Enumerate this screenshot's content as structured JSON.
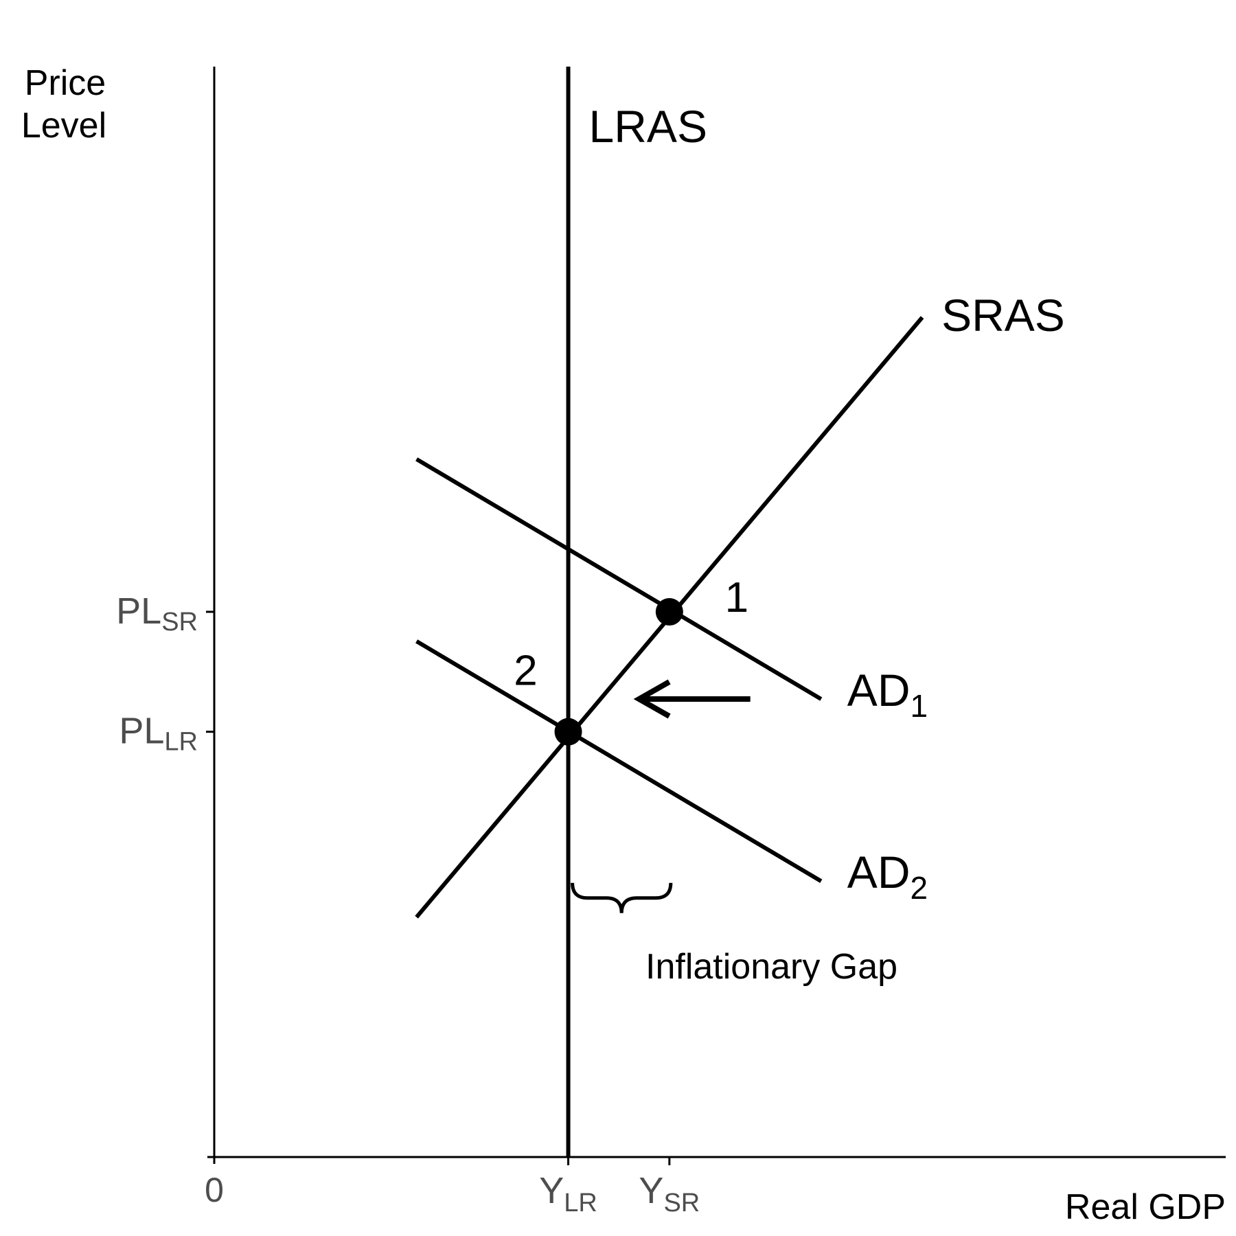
{
  "chart_data": {
    "type": "line",
    "title": "",
    "xlabel": "Real GDP",
    "ylabel_line1": "Price",
    "ylabel_line2": "Level",
    "origin_label": "0",
    "xlim": [
      0,
      10
    ],
    "ylim": [
      0,
      10
    ],
    "x_ticks": [
      {
        "value": 3.5,
        "main": "Y",
        "sub": "LR"
      },
      {
        "value": 4.5,
        "main": "Y",
        "sub": "SR"
      }
    ],
    "y_ticks": [
      {
        "value": 5.0,
        "main": "PL",
        "sub": "SR"
      },
      {
        "value": 3.9,
        "main": "PL",
        "sub": "LR"
      }
    ],
    "series": [
      {
        "name": "LRAS",
        "x": [
          3.5,
          3.5
        ],
        "y": [
          0,
          10
        ]
      },
      {
        "name": "SRAS",
        "x": [
          2.0,
          7.0
        ],
        "y": [
          2.2,
          7.7
        ]
      },
      {
        "main": "AD",
        "sub": "1",
        "x": [
          2.0,
          6.0
        ],
        "y": [
          6.4,
          4.2
        ]
      },
      {
        "main": "AD",
        "sub": "2",
        "x": [
          2.0,
          6.0
        ],
        "y": [
          4.73,
          2.53
        ]
      }
    ],
    "equilibria": [
      {
        "label": "1",
        "x": 4.5,
        "y": 5.0
      },
      {
        "label": "2",
        "x": 3.5,
        "y": 3.9
      }
    ],
    "shift_arrow": {
      "from_x": 5.3,
      "to_x": 4.2,
      "y": 4.2
    },
    "gap": {
      "label": "Inflationary Gap",
      "from_x": 3.5,
      "to_x": 4.5,
      "y": 2.3
    }
  }
}
